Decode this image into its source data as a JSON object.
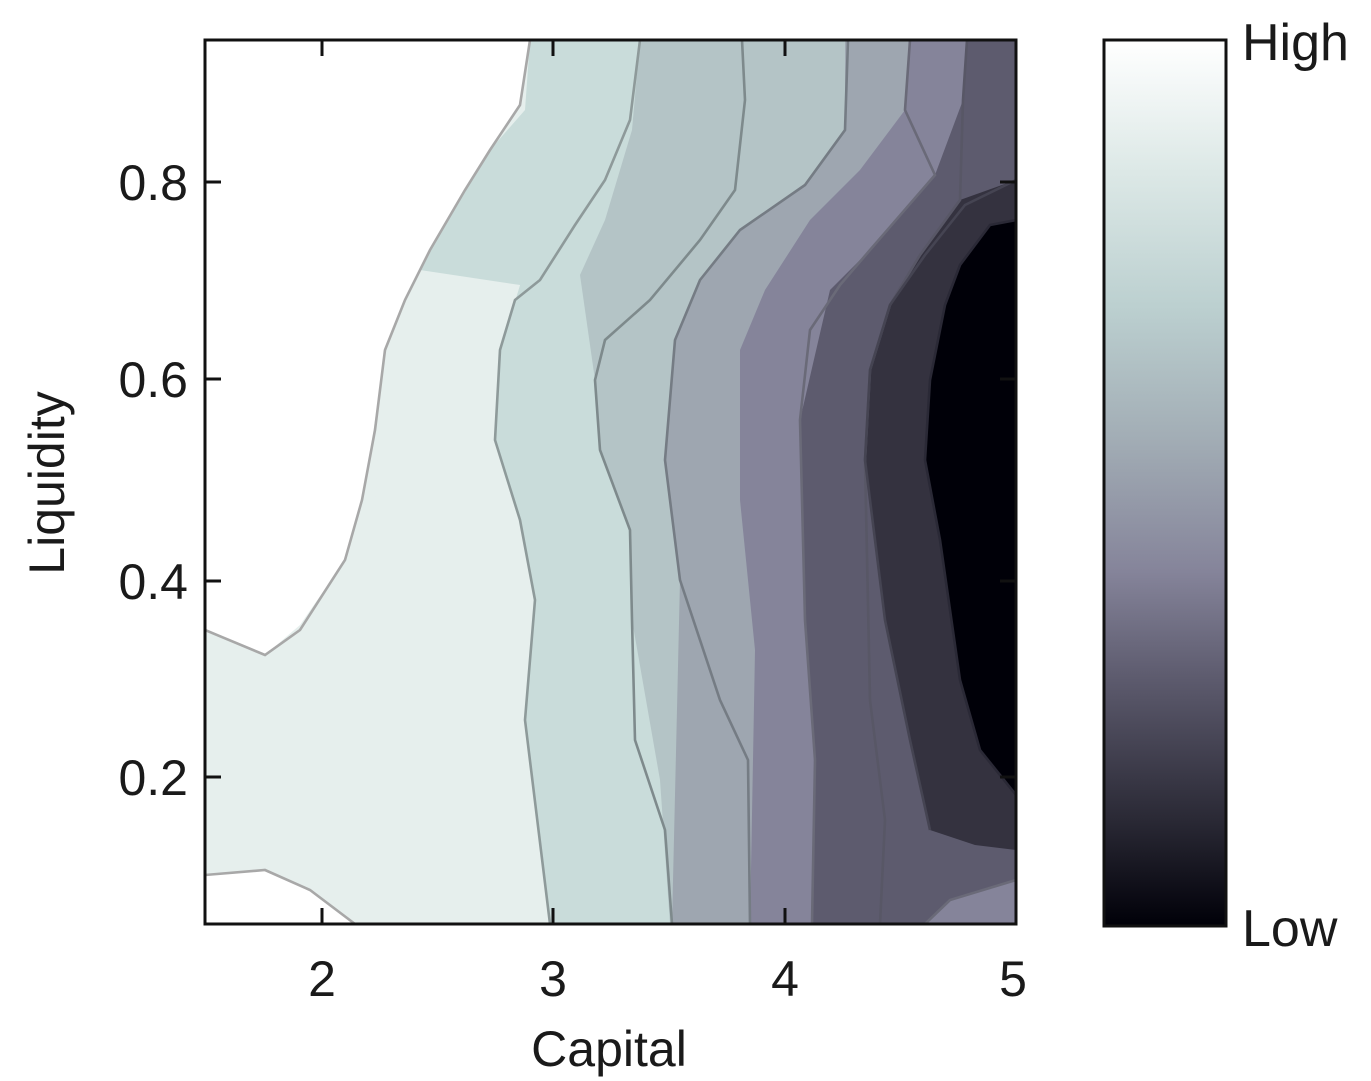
{
  "chart_data": {
    "type": "contour",
    "title": "",
    "xlabel": "Capital",
    "ylabel": "Liquidity",
    "xlim": [
      1.5,
      5.0
    ],
    "ylim": [
      0.05,
      0.95
    ],
    "x_ticks": [
      2,
      3,
      4,
      5
    ],
    "x_tick_labels": [
      "2",
      "3",
      "4",
      "5"
    ],
    "y_ticks": [
      0.2,
      0.4,
      0.6,
      0.8
    ],
    "y_tick_labels": [
      "0.2",
      "0.4",
      "0.6",
      "0.8"
    ],
    "colorbar": {
      "high_label": "High",
      "low_label": "Low",
      "colors_low_to_high": [
        "#000008",
        "#34323f",
        "#5d5b6e",
        "#85849a",
        "#9ea6b0",
        "#b4c4c6",
        "#c9dcda",
        "#e6efed",
        "#ffffff"
      ]
    },
    "contour_levels": [
      {
        "level": 1,
        "x": [
          1.5,
          1.75,
          1.9,
          2.15,
          2.35,
          2.55,
          2.7,
          2.8,
          2.9,
          2.92
        ],
        "y": [
          0.35,
          0.33,
          0.35,
          0.44,
          0.55,
          0.68,
          0.8,
          0.85,
          0.93,
          0.95
        ]
      },
      {
        "level": 1,
        "x": [
          1.5,
          1.8,
          2.1
        ],
        "y": [
          0.11,
          0.12,
          0.05
        ]
      },
      {
        "level": 2,
        "x": [
          2.95,
          2.95,
          2.9,
          2.78,
          2.75,
          2.8,
          2.86,
          2.9,
          3.1,
          3.18,
          3.2
        ],
        "y": [
          0.05,
          0.2,
          0.4,
          0.55,
          0.62,
          0.72,
          0.75,
          0.78,
          0.85,
          0.9,
          0.95
        ]
      },
      {
        "level": 3,
        "x": [
          3.5,
          3.48,
          3.4,
          3.28,
          3.15,
          3.13,
          3.18,
          3.3,
          3.45,
          3.6,
          3.62
        ],
        "y": [
          0.05,
          0.2,
          0.4,
          0.5,
          0.6,
          0.62,
          0.65,
          0.7,
          0.8,
          0.9,
          0.95
        ]
      },
      {
        "level": 4,
        "x": [
          3.83,
          3.82,
          3.7,
          3.57,
          3.5,
          3.55,
          3.7,
          3.88,
          4.08,
          4.07
        ],
        "y": [
          0.05,
          0.2,
          0.35,
          0.45,
          0.55,
          0.6,
          0.65,
          0.72,
          0.85,
          0.95
        ]
      },
      {
        "level": 5,
        "x": [
          4.1,
          4.08,
          3.95,
          3.85,
          3.8,
          3.88,
          4.05,
          4.22,
          4.35,
          4.38
        ],
        "y": [
          0.05,
          0.2,
          0.35,
          0.45,
          0.55,
          0.62,
          0.7,
          0.78,
          0.86,
          0.95
        ]
      },
      {
        "level": 6,
        "x": [
          4.4,
          4.35,
          4.2,
          4.15,
          4.17,
          4.3,
          4.45,
          4.6,
          4.63
        ],
        "y": [
          0.05,
          0.15,
          0.3,
          0.45,
          0.55,
          0.65,
          0.72,
          0.82,
          0.95
        ]
      },
      {
        "level": 7,
        "x": [
          4.6,
          4.55,
          4.45,
          4.45,
          4.55,
          4.72,
          4.85,
          5.0
        ],
        "y": [
          0.13,
          0.18,
          0.35,
          0.5,
          0.6,
          0.7,
          0.78,
          0.82
        ]
      },
      {
        "level": 8,
        "x": [
          5.0,
          4.85,
          4.75,
          4.7,
          4.7,
          4.75,
          4.83,
          4.9,
          5.0
        ],
        "y": [
          0.18,
          0.22,
          0.32,
          0.45,
          0.55,
          0.62,
          0.67,
          0.73,
          0.76
        ]
      },
      {
        "level": 6,
        "x": [
          4.6,
          4.8,
          5.0
        ],
        "y": [
          0.05,
          0.09,
          0.09
        ]
      }
    ]
  }
}
